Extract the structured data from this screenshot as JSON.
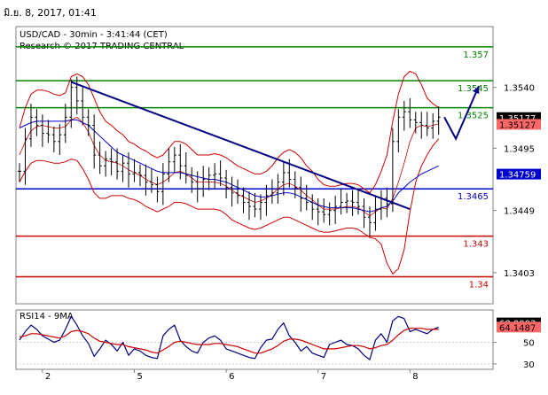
{
  "timestamp": "มิ.ย. 8, 2017, 01:41",
  "chart_data": {
    "type": "line",
    "title": "USD/CAD - 30min - 3:41:44 (CET)",
    "subtitle": "Research © 2017 TRADING CENTRAL",
    "price_axis": {
      "ylim": [
        1.338,
        1.3585
      ],
      "ticks": [
        1.354,
        1.3495,
        1.3449,
        1.3403
      ]
    },
    "x_ticks": [
      {
        "label": "2",
        "index": 4
      },
      {
        "label": "5",
        "index": 20
      },
      {
        "label": "6",
        "index": 36
      },
      {
        "label": "7",
        "index": 52
      },
      {
        "label": "8",
        "index": 68
      }
    ],
    "series": [
      {
        "name": "USD/CAD",
        "role": "price",
        "values": [
          1.3478,
          1.3502,
          1.3518,
          1.3512,
          1.3506,
          1.3505,
          1.35,
          1.3505,
          1.3518,
          1.354,
          1.353,
          1.3518,
          1.3512,
          1.349,
          1.3482,
          1.3487,
          1.3485,
          1.3478,
          1.3484,
          1.3476,
          1.3477,
          1.3475,
          1.347,
          1.3468,
          1.3463,
          1.3476,
          1.3485,
          1.349,
          1.3482,
          1.3475,
          1.347,
          1.3465,
          1.3472,
          1.3475,
          1.3476,
          1.3473,
          1.3466,
          1.3462,
          1.346,
          1.3455,
          1.3452,
          1.345,
          1.3455,
          1.346,
          1.3462,
          1.347,
          1.3477,
          1.3472,
          1.3466,
          1.3458,
          1.3455,
          1.345,
          1.3448,
          1.3446,
          1.3449,
          1.3452,
          1.3455,
          1.3456,
          1.3455,
          1.3452,
          1.3444,
          1.344,
          1.345,
          1.3458,
          1.3454,
          1.35,
          1.3518,
          1.3522,
          1.3516,
          1.3514,
          1.3512,
          1.351,
          1.3515,
          1.3518
        ]
      },
      {
        "name": "Bollinger upper",
        "role": "bb-upper",
        "values": [
          1.351,
          1.3525,
          1.3535,
          1.3538,
          1.3538,
          1.3537,
          1.3535,
          1.3534,
          1.3536,
          1.3548,
          1.355,
          1.3548,
          1.3542,
          1.3532,
          1.3522,
          1.3515,
          1.3512,
          1.3508,
          1.3505,
          1.35,
          1.3498,
          1.3495,
          1.3493,
          1.349,
          1.3488,
          1.349,
          1.3495,
          1.35,
          1.35,
          1.3498,
          1.3494,
          1.349,
          1.349,
          1.349,
          1.3491,
          1.349,
          1.3488,
          1.3485,
          1.3482,
          1.348,
          1.3478,
          1.3476,
          1.3476,
          1.3478,
          1.3482,
          1.3488,
          1.3492,
          1.3494,
          1.3492,
          1.3488,
          1.3482,
          1.3478,
          1.3472,
          1.3468,
          1.3467,
          1.3467,
          1.3468,
          1.3469,
          1.3469,
          1.3468,
          1.3465,
          1.3462,
          1.3468,
          1.3478,
          1.349,
          1.3515,
          1.3535,
          1.3548,
          1.3552,
          1.355,
          1.3542,
          1.3532,
          1.3528,
          1.3525
        ]
      },
      {
        "name": "Bollinger lower",
        "role": "bb-lower",
        "values": [
          1.347,
          1.3478,
          1.3484,
          1.3486,
          1.3486,
          1.3485,
          1.3484,
          1.3484,
          1.3485,
          1.3487,
          1.3486,
          1.348,
          1.3472,
          1.3462,
          1.3458,
          1.3458,
          1.346,
          1.346,
          1.346,
          1.3458,
          1.3457,
          1.3455,
          1.3452,
          1.345,
          1.3448,
          1.345,
          1.3452,
          1.3455,
          1.3455,
          1.3454,
          1.3452,
          1.345,
          1.345,
          1.345,
          1.345,
          1.3449,
          1.3446,
          1.3442,
          1.344,
          1.3438,
          1.3436,
          1.3435,
          1.3436,
          1.3438,
          1.344,
          1.3442,
          1.3444,
          1.3444,
          1.3442,
          1.344,
          1.3438,
          1.3436,
          1.3434,
          1.3433,
          1.3433,
          1.3434,
          1.3435,
          1.3436,
          1.3436,
          1.3435,
          1.3432,
          1.3429,
          1.3428,
          1.3424,
          1.341,
          1.3402,
          1.3406,
          1.342,
          1.3448,
          1.347,
          1.3482,
          1.349,
          1.3497,
          1.3502
        ]
      },
      {
        "name": "Bollinger middle",
        "role": "bb-mid",
        "values": [
          1.349,
          1.35,
          1.3508,
          1.3511,
          1.3512,
          1.3511,
          1.351,
          1.351,
          1.3511,
          1.3516,
          1.3518,
          1.3514,
          1.3507,
          1.3497,
          1.349,
          1.3486,
          1.3485,
          1.3484,
          1.3482,
          1.3479,
          1.3477,
          1.3475,
          1.3472,
          1.347,
          1.3468,
          1.347,
          1.3473,
          1.3477,
          1.3478,
          1.3476,
          1.3473,
          1.347,
          1.347,
          1.347,
          1.347,
          1.3469,
          1.3467,
          1.3464,
          1.3461,
          1.3459,
          1.3457,
          1.3455,
          1.3456,
          1.3458,
          1.3461,
          1.3465,
          1.3468,
          1.3469,
          1.3467,
          1.3464,
          1.346,
          1.3457,
          1.3453,
          1.345,
          1.345,
          1.345,
          1.3451,
          1.3452,
          1.3452,
          1.3451,
          1.3448,
          1.3445,
          1.3448,
          1.3451,
          1.345,
          1.3458,
          1.347,
          1.3484,
          1.35,
          1.351,
          1.3512,
          1.3511,
          1.3512,
          1.3513
        ]
      },
      {
        "name": "Moving average",
        "role": "ma",
        "values": [
          1.351,
          1.3512,
          1.3514,
          1.3515,
          1.3515,
          1.3515,
          1.3515,
          1.3515,
          1.3515,
          1.3516,
          1.3516,
          1.3514,
          1.3512,
          1.3508,
          1.3504,
          1.35,
          1.3496,
          1.3492,
          1.349,
          1.3488,
          1.3486,
          1.3484,
          1.3482,
          1.348,
          1.3478,
          1.3477,
          1.3477,
          1.3477,
          1.3477,
          1.3476,
          1.3475,
          1.3474,
          1.3473,
          1.3472,
          1.3472,
          1.3471,
          1.347,
          1.3468,
          1.3466,
          1.3464,
          1.3462,
          1.346,
          1.3459,
          1.3459,
          1.346,
          1.3461,
          1.3462,
          1.3462,
          1.3461,
          1.3459,
          1.3457,
          1.3455,
          1.3453,
          1.3452,
          1.3451,
          1.3451,
          1.3451,
          1.3451,
          1.3451,
          1.345,
          1.3449,
          1.3448,
          1.3449,
          1.3451,
          1.3452,
          1.3456,
          1.3462,
          1.3466,
          1.347,
          1.3473,
          1.3476,
          1.3478,
          1.348,
          1.3482
        ]
      }
    ],
    "levels": [
      {
        "value": 1.357,
        "label": "1.357",
        "color": "#008000"
      },
      {
        "value": 1.3545,
        "label": "1.3545",
        "color": "#008000"
      },
      {
        "value": 1.3525,
        "label": "1.3525",
        "color": "#008000"
      },
      {
        "value": 1.3465,
        "label": "1.3465",
        "color": "#0000cc"
      },
      {
        "value": 1.343,
        "label": "1.343",
        "color": "#cc0000"
      },
      {
        "value": 1.34,
        "label": "1.34",
        "color": "#cc0000"
      }
    ],
    "trendline": {
      "from": [
        9,
        1.3544
      ],
      "to": [
        68,
        1.345
      ],
      "color": "#000080"
    },
    "projection": {
      "points": [
        [
          74,
          1.3518
        ],
        [
          76,
          1.3502
        ],
        [
          80,
          1.3541
        ]
      ],
      "color": "#000080"
    },
    "price_flags": [
      {
        "value": 1.35177,
        "label": "1.35177",
        "bg": "#000000",
        "fg": "#ffffff"
      },
      {
        "value": 1.35127,
        "label": "1.35127",
        "bg": "#ff6666",
        "fg": "#000000"
      },
      {
        "value": 1.34759,
        "label": "1.34759",
        "bg": "#0000cc",
        "fg": "#ffffff"
      }
    ],
    "rsi": {
      "title": "RSI14 - 9MA",
      "ylim": [
        25,
        80
      ],
      "ticks": [
        50,
        30
      ],
      "values": [
        52,
        60,
        66,
        62,
        56,
        53,
        50,
        52,
        62,
        74,
        66,
        56,
        49,
        37,
        44,
        52,
        48,
        42,
        50,
        38,
        44,
        42,
        38,
        36,
        35,
        56,
        62,
        66,
        52,
        46,
        42,
        40,
        50,
        54,
        56,
        52,
        44,
        42,
        40,
        38,
        36,
        35,
        45,
        52,
        53,
        62,
        68,
        56,
        50,
        42,
        46,
        40,
        38,
        36,
        48,
        50,
        52,
        48,
        47,
        44,
        38,
        34,
        52,
        58,
        50,
        70,
        74,
        72,
        60,
        62,
        60,
        58,
        62,
        64
      ],
      "ma_values": [
        55,
        56,
        58,
        58,
        57,
        56,
        55,
        54,
        56,
        60,
        61,
        60,
        58,
        54,
        51,
        50,
        49,
        48,
        48,
        46,
        45,
        44,
        43,
        41,
        40,
        43,
        46,
        50,
        51,
        50,
        49,
        48,
        48,
        48,
        49,
        49,
        48,
        47,
        46,
        44,
        42,
        40,
        40,
        42,
        44,
        47,
        51,
        53,
        53,
        52,
        50,
        48,
        46,
        44,
        44,
        44,
        45,
        46,
        47,
        47,
        46,
        44,
        45,
        47,
        48,
        52,
        57,
        61,
        63,
        63,
        63,
        62,
        62,
        62
      ],
      "flags": [
        {
          "value": 68.0003,
          "label": "68.0003",
          "bg": "#000000",
          "fg": "#ffffff"
        },
        {
          "value": 64.1487,
          "label": "64.1487",
          "bg": "#ff6666",
          "fg": "#000000"
        }
      ]
    }
  }
}
